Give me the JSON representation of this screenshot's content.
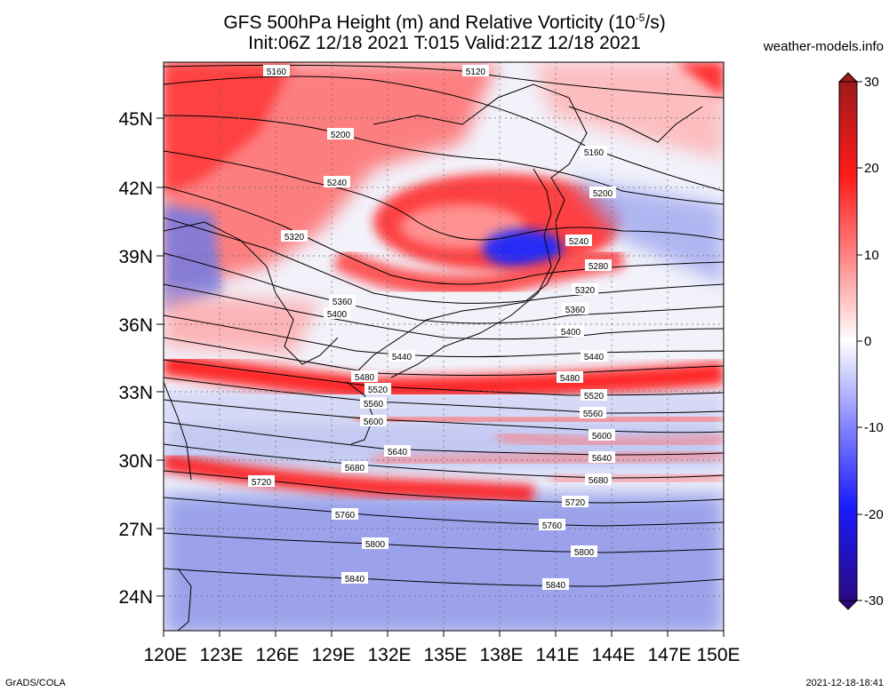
{
  "title": {
    "line1_pre": "GFS 500hPa Height (m) and Relative Vorticity (10",
    "line1_sup": "-5",
    "line1_post": "/s)",
    "line2": "Init:06Z 12/18 2021 T:015 Valid:21Z 12/18 2021"
  },
  "source": "weather-models.info",
  "footer": {
    "left": "GrADS/COLA",
    "right": "2021-12-18-18:41"
  },
  "axes": {
    "lat_labels": [
      "45N",
      "42N",
      "39N",
      "36N",
      "33N",
      "30N",
      "27N",
      "24N"
    ],
    "lon_labels": [
      "120E",
      "123E",
      "126E",
      "129E",
      "132E",
      "135E",
      "138E",
      "141E",
      "144E",
      "147E",
      "150E"
    ]
  },
  "colorbar": {
    "ticks": [
      "30",
      "20",
      "10",
      "0",
      "-10",
      "-20",
      "-30"
    ],
    "colors": {
      "max": "#9e1a1a",
      "red": "#ff1a1a",
      "zero": "#ffffff",
      "blue": "#1a1aff",
      "min": "#2a0a80"
    }
  },
  "contours": {
    "labels": [
      "5120",
      "5160",
      "5160",
      "5200",
      "5200",
      "5240",
      "5240",
      "5280",
      "5320",
      "5320",
      "5360",
      "5360",
      "5400",
      "5400",
      "5440",
      "5440",
      "5480",
      "5480",
      "5520",
      "5520",
      "5560",
      "5560",
      "5600",
      "5600",
      "5640",
      "5640",
      "5680",
      "5680",
      "5720",
      "5720",
      "5760",
      "5760",
      "5800",
      "5800",
      "5840",
      "5840"
    ]
  }
}
